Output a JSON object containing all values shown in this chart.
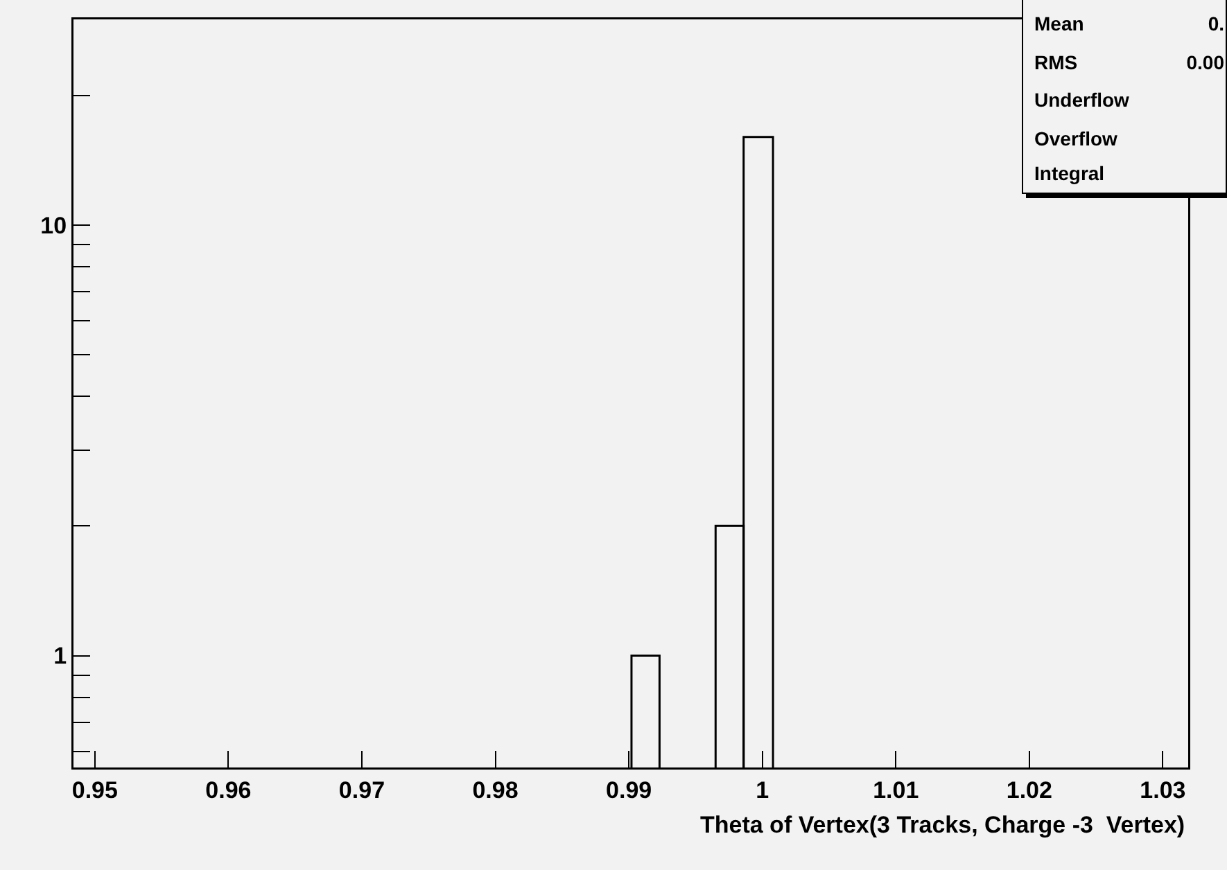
{
  "chart_data": {
    "type": "histogram",
    "xlabel": "Theta of Vertex(3 Tracks, Charge -3  Vertex)",
    "bins": [
      0.9902,
      0.9923,
      0.9965,
      0.9986,
      1.0008
    ],
    "values": [
      1,
      null,
      2,
      16
    ],
    "color": "#000000",
    "log": "y",
    "xlim": [
      0.9484,
      1.0319
    ],
    "xticks": [
      0.95,
      0.96,
      0.97,
      0.98,
      0.99,
      1,
      1.01,
      1.02,
      1.03
    ],
    "ylim": [
      0.55,
      30
    ],
    "yticks": [
      {
        "value": 0.6,
        "label": null
      },
      {
        "value": 0.7,
        "label": null
      },
      {
        "value": 0.8,
        "label": null
      },
      {
        "value": 0.9,
        "label": null
      },
      1,
      {
        "value": 2,
        "label": null
      },
      {
        "value": 3,
        "label": null
      },
      {
        "value": 4,
        "label": null
      },
      {
        "value": 5,
        "label": null
      },
      {
        "value": 6,
        "label": null
      },
      {
        "value": 7,
        "label": null
      },
      {
        "value": 8,
        "label": null
      },
      {
        "value": 9,
        "label": null
      },
      10,
      {
        "value": 20,
        "label": null
      }
    ],
    "grid": false,
    "annotations": [
      "Mean",
      "0.",
      "RMS",
      "0.00",
      "Underflow",
      "Overflow",
      "Integral"
    ]
  }
}
